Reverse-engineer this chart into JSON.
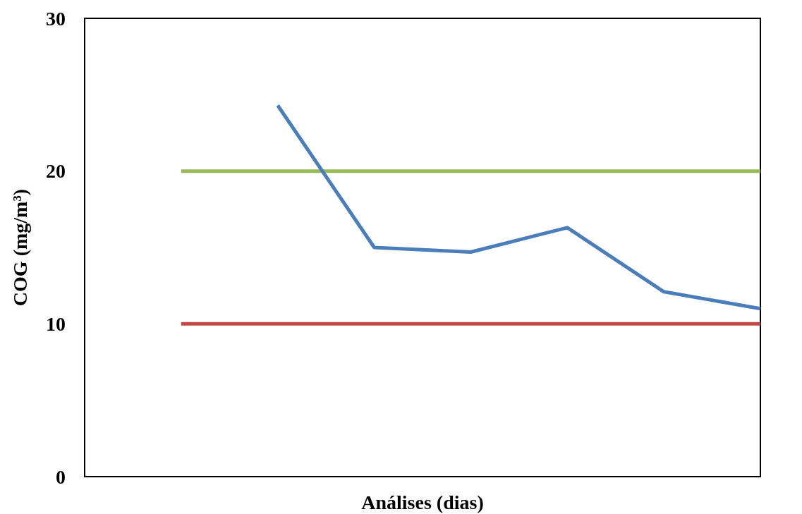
{
  "chart_data": {
    "type": "line",
    "xlabel": "Análises (dias)",
    "ylabel": "COG (mg/m³)",
    "categories": [
      null,
      null,
      null,
      null,
      null,
      null,
      null,
      null
    ],
    "series": [
      {
        "color": "#98b954",
        "values": [
          null,
          20,
          20,
          20,
          20,
          20,
          20,
          20
        ]
      },
      {
        "color": "#be4b48",
        "values": [
          null,
          10,
          10,
          10,
          10,
          10,
          10,
          10
        ]
      },
      {
        "color": "#4a7ebb",
        "values": [
          null,
          null,
          24.3,
          15.0,
          14.7,
          16.3,
          12.1,
          11.0
        ]
      }
    ],
    "ylim": [
      0,
      30
    ],
    "yticks": [
      0,
      10,
      20,
      30
    ],
    "grid": false,
    "marker": "none",
    "line_style": "solid"
  }
}
